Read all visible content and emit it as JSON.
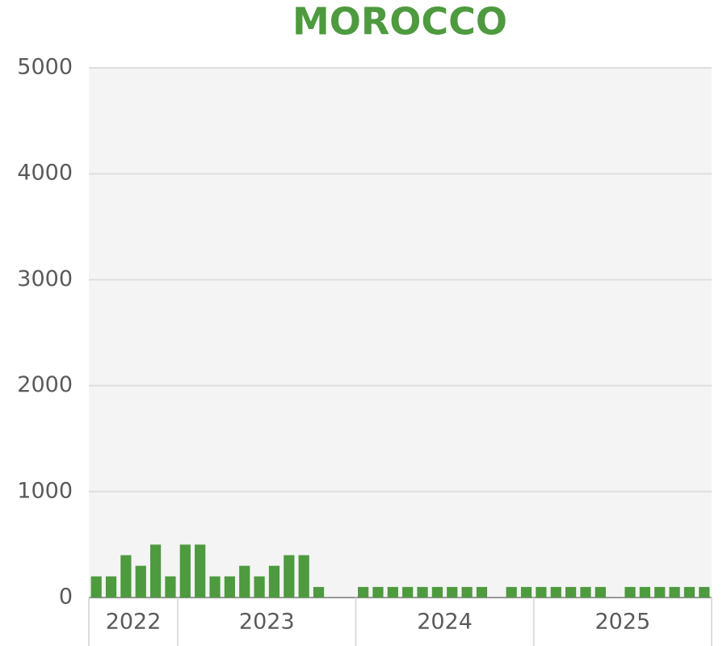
{
  "chart_data": {
    "type": "bar",
    "title": "MOROCCO",
    "color": "#4e9a3f",
    "categories": [
      null,
      null,
      null,
      null,
      null,
      null,
      null,
      null,
      null,
      null,
      null,
      null,
      null,
      null,
      null,
      null,
      null,
      null,
      null,
      null,
      null,
      null,
      null,
      null,
      null,
      null,
      null,
      null,
      null,
      null,
      null,
      null,
      null,
      null,
      null,
      null,
      null,
      null,
      null,
      null,
      null,
      null
    ],
    "values": [
      200,
      200,
      400,
      300,
      500,
      200,
      500,
      500,
      200,
      200,
      300,
      200,
      300,
      400,
      400,
      100,
      null,
      null,
      100,
      100,
      100,
      100,
      100,
      100,
      100,
      100,
      100,
      null,
      100,
      100,
      100,
      100,
      100,
      100,
      100,
      null,
      100,
      100,
      100,
      100,
      100,
      100
    ],
    "groups": [
      {
        "label": "2022",
        "size": 6
      },
      {
        "label": "2023",
        "size": 12
      },
      {
        "label": "2024",
        "size": 12
      },
      {
        "label": "2025",
        "size": 12
      }
    ],
    "ylim": [
      0,
      5000
    ],
    "yticks": [
      0,
      1000,
      2000,
      3000,
      4000,
      5000
    ],
    "grid": true
  }
}
